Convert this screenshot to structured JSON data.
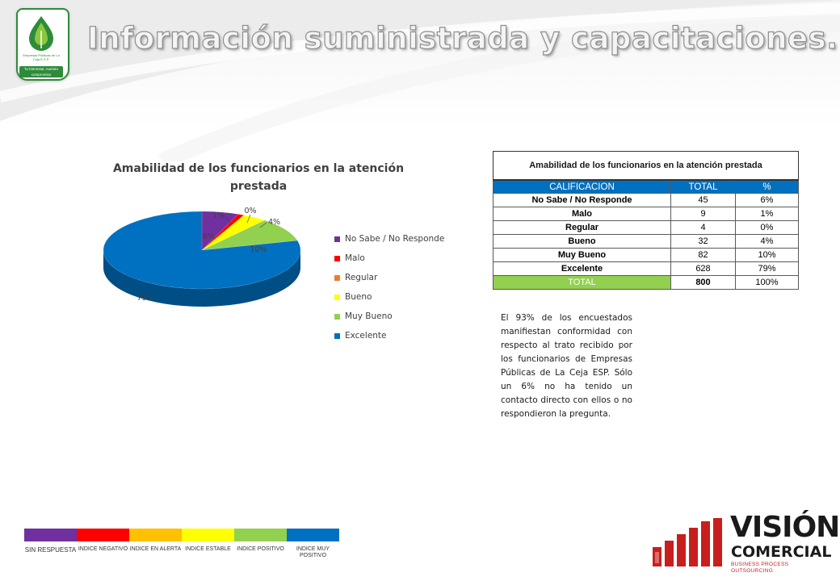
{
  "slide": {
    "title": "Información suministrada y capacitaciones."
  },
  "logo": {
    "name": "Empresas Públicas de La Ceja E.S.P.",
    "badge": "Tu bienestar, nuestro compromiso"
  },
  "chart_data": {
    "type": "pie",
    "title": "Amabilidad de los funcionarios en la atención prestada",
    "categories": [
      "No Sabe / No Responde",
      "Malo",
      "Regular",
      "Bueno",
      "Muy Bueno",
      "Excelente"
    ],
    "values": [
      6,
      1,
      0,
      4,
      10,
      79
    ],
    "data_labels": [
      "6%",
      "1%",
      "0%",
      "4%",
      "10%",
      "79%"
    ],
    "colors": [
      "#7030a0",
      "#ff0000",
      "#ed7d31",
      "#ffff00",
      "#92d050",
      "#0070c0"
    ],
    "legend_position": "right",
    "style": "3d"
  },
  "table": {
    "title": "Amabilidad de los funcionarios en la atención prestada",
    "headers": [
      "CALIFICACION",
      "TOTAL",
      "%"
    ],
    "rows": [
      [
        "No Sabe / No Responde",
        "45",
        "6%"
      ],
      [
        "Malo",
        "9",
        "1%"
      ],
      [
        "Regular",
        "4",
        "0%"
      ],
      [
        "Bueno",
        "32",
        "4%"
      ],
      [
        "Muy Bueno",
        "82",
        "10%"
      ],
      [
        "Excelente",
        "628",
        "79%"
      ]
    ],
    "total": [
      "TOTAL",
      "800",
      "100%"
    ]
  },
  "note": "El 93% de los encuestados manifiestan conformidad con respecto al trato recibido por los funcionarios de Empresas Públicas de La Ceja ESP. Sólo un 6% no ha tenido un contacto directo con ellos o no respondieron la pregunta.",
  "scale": [
    {
      "label": "SIN RESPUESTA",
      "color": "#7030a0"
    },
    {
      "label": "INDICE NEGATIVO",
      "color": "#ff0000"
    },
    {
      "label": "INDICE EN ALERTA",
      "color": "#ffc000"
    },
    {
      "label": "INDICE ESTABLE",
      "color": "#ffff00"
    },
    {
      "label": "INDICE POSITIVO",
      "color": "#92d050"
    },
    {
      "label": "INDICE MUY POSITIVO",
      "color": "#0070c0"
    }
  ],
  "brand": {
    "line1": "VISIÓN",
    "line2": "COMERCIAL",
    "tagline": "BUSINESS PROCESS OUTSOURCING"
  }
}
